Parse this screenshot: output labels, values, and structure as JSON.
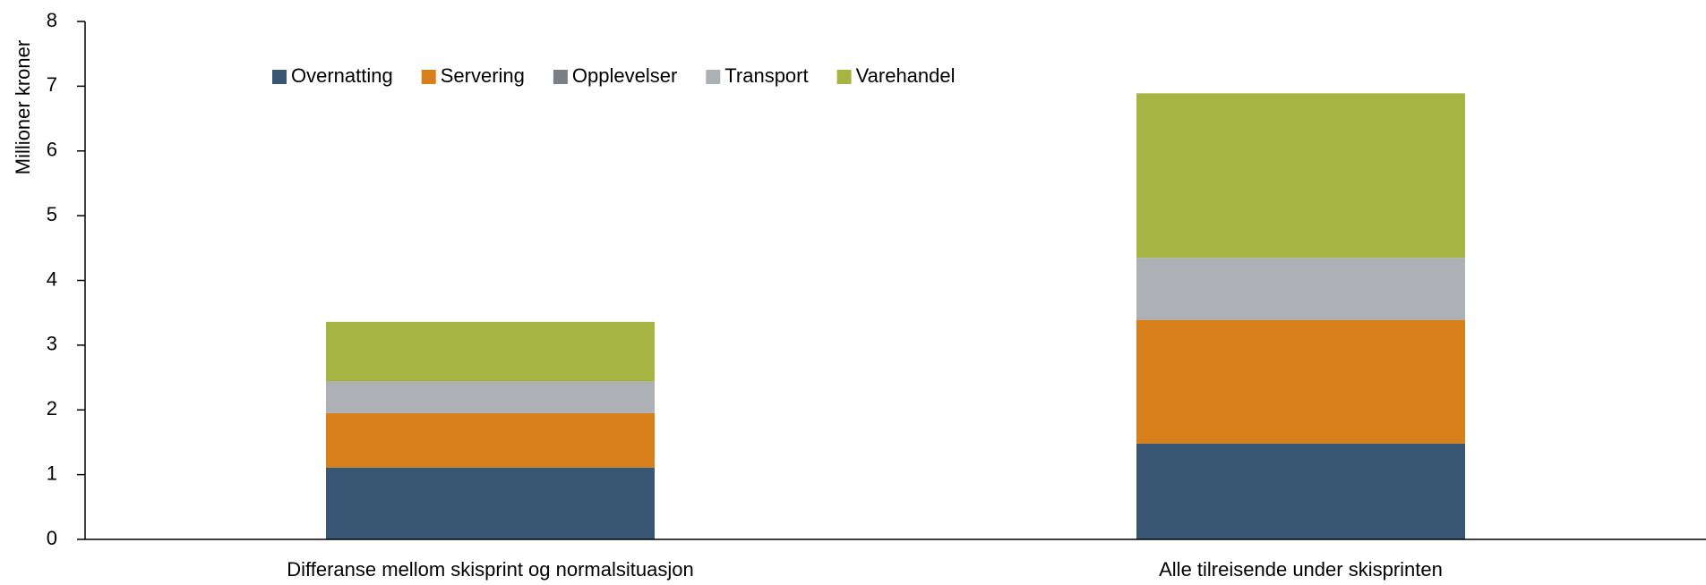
{
  "chart_data": {
    "type": "bar",
    "stacked": true,
    "y_label": "Millioner kroner",
    "categories": [
      "Differanse mellom skisprint og normalsituasjon",
      "Alle tilreisende under skisprinten"
    ],
    "series": [
      {
        "name": "Overnatting",
        "color": "#3a5675",
        "values": [
          1.11,
          1.48
        ]
      },
      {
        "name": "Servering",
        "color": "#d77f1a",
        "values": [
          0.84,
          1.91
        ]
      },
      {
        "name": "Opplevelser",
        "color": "#7a7f86",
        "values": [
          0,
          0
        ]
      },
      {
        "name": "Transport",
        "color": "#adb1b6",
        "values": [
          0.49,
          0.96
        ]
      },
      {
        "name": "Varehandel",
        "color": "#a6b443",
        "values": [
          0.92,
          2.54
        ]
      }
    ],
    "ylim": [
      0,
      8
    ],
    "yticks": [
      0,
      1,
      2,
      3,
      4,
      5,
      6,
      7,
      8
    ],
    "grid": false,
    "legend": "top"
  }
}
